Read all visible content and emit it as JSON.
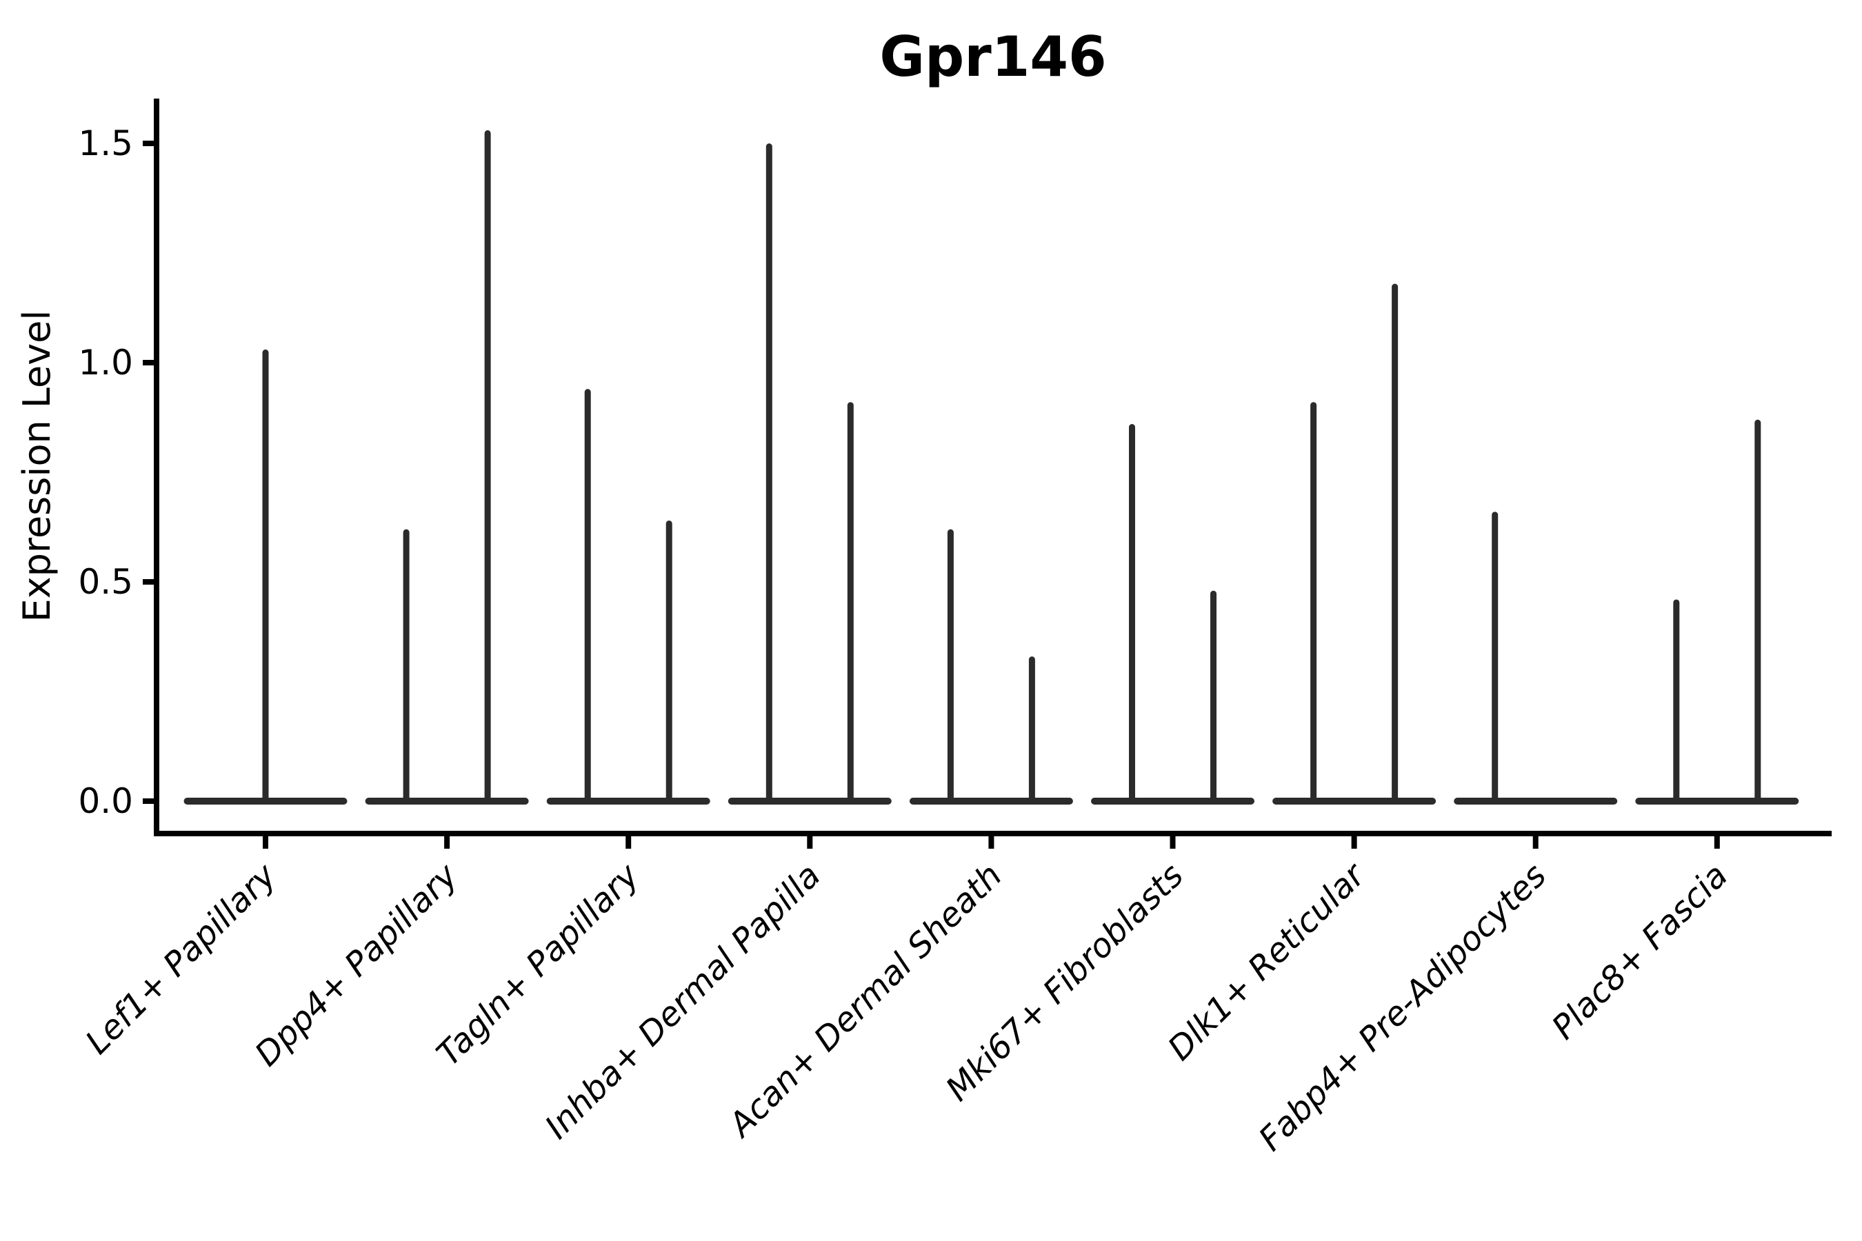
{
  "title": "Gpr146",
  "axes": {
    "ylabel": "Expression Level",
    "ytick_labels": [
      "0.0",
      "0.5",
      "1.0",
      "1.5"
    ]
  },
  "colors": {
    "axis": "#000000",
    "violin": "#2b2b2b",
    "background": "#ffffff"
  },
  "chart_data": {
    "type": "violin",
    "title": "Gpr146",
    "xlabel": "",
    "ylabel": "Expression Level",
    "ylim": [
      -0.074,
      1.607
    ],
    "ytick_values": [
      0.0,
      0.5,
      1.0,
      1.5
    ],
    "ytick_labels": [
      "0.0",
      "0.5",
      "1.0",
      "1.5"
    ],
    "grid": false,
    "legend": "none",
    "description": "Seurat-style violin plot of Gpr146 expression. Most cells have zero expression, so each violin collapses to a wide flat base at 0 with a thin vertical density spike up to the maximum expressed value. Every category except the first contains two side-by-side violins (two groups); the first category has a single full-width violin; the second violin of Fabp4+ Pre-Adipocytes has no expressing cells (spike height 0).",
    "categories": [
      "Lef1+ Papillary",
      "Dpp4+ Papillary",
      "Tagln+ Papillary",
      "Inhba+ Dermal Papilla",
      "Acan+ Dermal Sheath",
      "Mki67+ Fibroblasts",
      "Dlk1+ Reticular",
      "Fabp4+ Pre-Adipocytes",
      "Plac8+ Fascia"
    ],
    "spike_max_per_category": [
      [
        1.03
      ],
      [
        0.62,
        1.53
      ],
      [
        0.94,
        0.64
      ],
      [
        1.5,
        0.91
      ],
      [
        0.62,
        0.33
      ],
      [
        0.86,
        0.48
      ],
      [
        0.91,
        1.18
      ],
      [
        0.66,
        0.0
      ],
      [
        0.46,
        0.87
      ]
    ]
  }
}
